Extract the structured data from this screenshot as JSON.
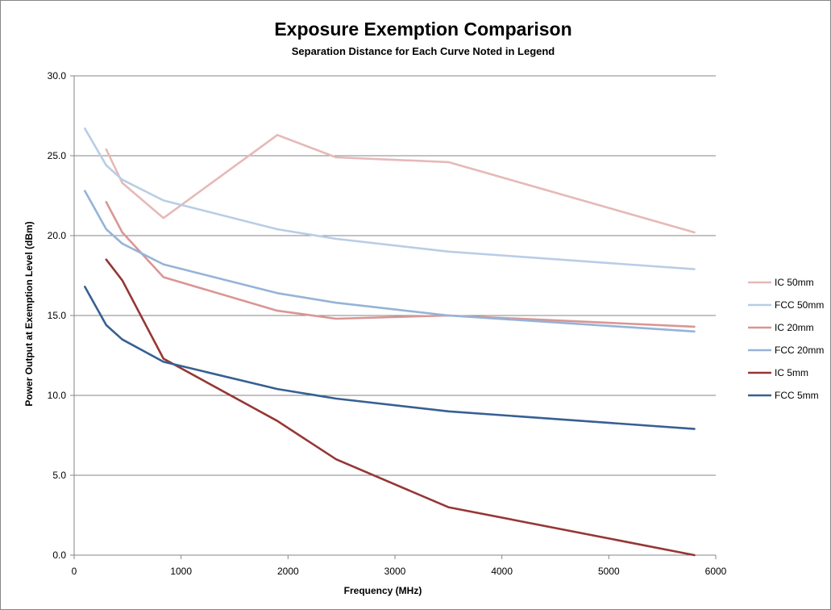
{
  "chart_data": {
    "type": "line",
    "title": "Exposure Exemption Comparison",
    "subtitle": "Separation Distance for Each Curve Noted in Legend",
    "xlabel": "Frequency (MHz)",
    "ylabel": "Power Output at Exemption Level (dBm)",
    "xlim": [
      0,
      6000
    ],
    "ylim": [
      0,
      30
    ],
    "x_ticks": [
      0,
      1000,
      2000,
      3000,
      4000,
      5000,
      6000
    ],
    "x_tick_labels": [
      "0",
      "1000",
      "2000",
      "3000",
      "4000",
      "5000",
      "6000"
    ],
    "y_ticks": [
      0,
      5,
      10,
      15,
      20,
      25,
      30
    ],
    "y_tick_labels": [
      "0.0",
      "5.0",
      "10.0",
      "15.0",
      "20.0",
      "25.0",
      "30.0"
    ],
    "grid": "horizontal",
    "legend_position": "right",
    "series": [
      {
        "name": "IC 50mm",
        "color": "#e6b9b8",
        "x": [
          300,
          450,
          835,
          1900,
          2450,
          3500,
          5800
        ],
        "y": [
          25.4,
          23.3,
          21.1,
          26.3,
          24.9,
          24.6,
          20.2
        ]
      },
      {
        "name": "FCC 50mm",
        "color": "#b9cde5",
        "x": [
          100,
          300,
          450,
          835,
          1900,
          2450,
          3500,
          5800
        ],
        "y": [
          26.7,
          24.4,
          23.5,
          22.2,
          20.4,
          19.8,
          19.0,
          17.9
        ]
      },
      {
        "name": "IC 20mm",
        "color": "#d99694",
        "x": [
          300,
          450,
          835,
          1900,
          2450,
          3500,
          5800
        ],
        "y": [
          22.1,
          20.2,
          17.4,
          15.3,
          14.8,
          15.0,
          14.3
        ]
      },
      {
        "name": "FCC 20mm",
        "color": "#95b3d7",
        "x": [
          100,
          300,
          450,
          835,
          1900,
          2450,
          3500,
          5800
        ],
        "y": [
          22.8,
          20.4,
          19.5,
          18.2,
          16.4,
          15.8,
          15.0,
          14.0
        ]
      },
      {
        "name": "IC 5mm",
        "color": "#953735",
        "x": [
          300,
          450,
          835,
          1900,
          2450,
          3500,
          5800
        ],
        "y": [
          18.5,
          17.2,
          12.3,
          8.4,
          6.0,
          3.0,
          0.0
        ]
      },
      {
        "name": "FCC 5mm",
        "color": "#376092",
        "x": [
          100,
          300,
          450,
          835,
          1900,
          2450,
          3500,
          5800
        ],
        "y": [
          16.8,
          14.4,
          13.5,
          12.1,
          10.4,
          9.8,
          9.0,
          7.9
        ]
      }
    ]
  }
}
